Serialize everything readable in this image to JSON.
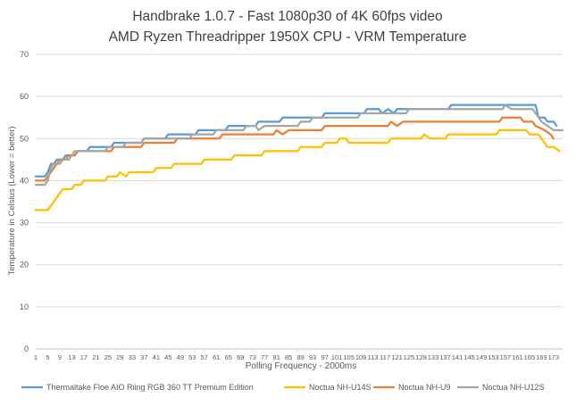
{
  "chart_data": {
    "type": "line",
    "title": "Handbrake 1.0.7 - Fast 1080p30 of 4K 60fps video",
    "subtitle": "AMD Ryzen Threadripper 1950X CPU - VRM Temperature",
    "xlabel": "Polling Frequency - 2000ms",
    "ylabel": "Temperature in Celsius (Lower = better)",
    "ylim": [
      0,
      70
    ],
    "yticks": [
      0,
      10,
      20,
      30,
      40,
      50,
      60,
      70
    ],
    "xlim": [
      1,
      176
    ],
    "xticks": [
      "1",
      "5",
      "9",
      "13",
      "17",
      "21",
      "25",
      "29",
      "33",
      "37",
      "41",
      "45",
      "49",
      "53",
      "57",
      "61",
      "65",
      "69",
      "73",
      "77",
      "81",
      "85",
      "89",
      "93",
      "97",
      "101",
      "105",
      "109",
      "113",
      "117",
      "121",
      "125",
      "129",
      "133",
      "137",
      "141",
      "145",
      "149",
      "153",
      "157",
      "161",
      "165",
      "169",
      "173"
    ],
    "grid": "horizontal",
    "legend_position": "bottom",
    "series": [
      {
        "name": "Thermaltake Floe AIO Riing RGB 360 TT Premium Edition",
        "color": "#5b9bd5",
        "points": [
          [
            1,
            41
          ],
          [
            4,
            41
          ],
          [
            5,
            42
          ],
          [
            6,
            44
          ],
          [
            7,
            44
          ],
          [
            8,
            45
          ],
          [
            10,
            45
          ],
          [
            11,
            46
          ],
          [
            14,
            46
          ],
          [
            15,
            47
          ],
          [
            18,
            47
          ],
          [
            19,
            48
          ],
          [
            26,
            48
          ],
          [
            27,
            49
          ],
          [
            36,
            49
          ],
          [
            37,
            50
          ],
          [
            44,
            50
          ],
          [
            45,
            51
          ],
          [
            54,
            51
          ],
          [
            55,
            52
          ],
          [
            64,
            52
          ],
          [
            65,
            53
          ],
          [
            74,
            53
          ],
          [
            75,
            54
          ],
          [
            82,
            54
          ],
          [
            83,
            55
          ],
          [
            96,
            55
          ],
          [
            97,
            56
          ],
          [
            110,
            56
          ],
          [
            111,
            57
          ],
          [
            115,
            57
          ],
          [
            116,
            56
          ],
          [
            118,
            57
          ],
          [
            120,
            56
          ],
          [
            121,
            57
          ],
          [
            138,
            57
          ],
          [
            139,
            58
          ],
          [
            167,
            58
          ],
          [
            168,
            55
          ],
          [
            170,
            55
          ],
          [
            171,
            54
          ],
          [
            173,
            54
          ],
          [
            174,
            53
          ]
        ]
      },
      {
        "name": "Noctua NH-U14S",
        "color": "#ffc000",
        "points": [
          [
            1,
            33
          ],
          [
            5,
            33
          ],
          [
            6,
            34
          ],
          [
            8,
            36
          ],
          [
            9,
            37
          ],
          [
            10,
            38
          ],
          [
            13,
            38
          ],
          [
            14,
            39
          ],
          [
            16,
            39
          ],
          [
            17,
            40
          ],
          [
            24,
            40
          ],
          [
            25,
            41
          ],
          [
            28,
            41
          ],
          [
            29,
            42
          ],
          [
            31,
            41
          ],
          [
            32,
            42
          ],
          [
            40,
            42
          ],
          [
            41,
            43
          ],
          [
            46,
            43
          ],
          [
            47,
            44
          ],
          [
            56,
            44
          ],
          [
            57,
            45
          ],
          [
            66,
            45
          ],
          [
            67,
            46
          ],
          [
            76,
            46
          ],
          [
            77,
            47
          ],
          [
            88,
            47
          ],
          [
            89,
            48
          ],
          [
            96,
            48
          ],
          [
            97,
            49
          ],
          [
            101,
            49
          ],
          [
            102,
            50
          ],
          [
            104,
            50
          ],
          [
            105,
            49
          ],
          [
            118,
            49
          ],
          [
            119,
            50
          ],
          [
            129,
            50
          ],
          [
            130,
            51
          ],
          [
            132,
            50
          ],
          [
            137,
            50
          ],
          [
            138,
            51
          ],
          [
            154,
            51
          ],
          [
            155,
            52
          ],
          [
            164,
            52
          ],
          [
            165,
            51
          ],
          [
            168,
            51
          ],
          [
            169,
            50
          ],
          [
            171,
            48
          ],
          [
            173,
            48
          ],
          [
            175,
            47
          ]
        ]
      },
      {
        "name": "Noctua NH-U9",
        "color": "#ed7d31",
        "points": [
          [
            1,
            40
          ],
          [
            4,
            40
          ],
          [
            5,
            41
          ],
          [
            7,
            43
          ],
          [
            8,
            44
          ],
          [
            9,
            45
          ],
          [
            11,
            45
          ],
          [
            12,
            46
          ],
          [
            14,
            46
          ],
          [
            15,
            47
          ],
          [
            26,
            47
          ],
          [
            27,
            48
          ],
          [
            36,
            48
          ],
          [
            37,
            49
          ],
          [
            47,
            49
          ],
          [
            48,
            50
          ],
          [
            62,
            50
          ],
          [
            63,
            51
          ],
          [
            80,
            51
          ],
          [
            81,
            52
          ],
          [
            83,
            51
          ],
          [
            85,
            52
          ],
          [
            96,
            52
          ],
          [
            97,
            53
          ],
          [
            118,
            53
          ],
          [
            119,
            54
          ],
          [
            121,
            53
          ],
          [
            123,
            54
          ],
          [
            155,
            54
          ],
          [
            156,
            55
          ],
          [
            162,
            55
          ],
          [
            163,
            54
          ],
          [
            166,
            54
          ],
          [
            167,
            53
          ],
          [
            170,
            52
          ],
          [
            172,
            51
          ],
          [
            173,
            50
          ]
        ]
      },
      {
        "name": "Noctua NH-U12S",
        "color": "#a5a5a5",
        "points": [
          [
            1,
            39
          ],
          [
            4,
            39
          ],
          [
            5,
            40
          ],
          [
            6,
            43
          ],
          [
            7,
            44
          ],
          [
            9,
            44
          ],
          [
            10,
            45
          ],
          [
            12,
            45
          ],
          [
            13,
            46
          ],
          [
            14,
            47
          ],
          [
            24,
            47
          ],
          [
            25,
            48
          ],
          [
            30,
            48
          ],
          [
            31,
            49
          ],
          [
            36,
            49
          ],
          [
            37,
            50
          ],
          [
            52,
            50
          ],
          [
            53,
            51
          ],
          [
            60,
            51
          ],
          [
            61,
            52
          ],
          [
            70,
            52
          ],
          [
            71,
            53
          ],
          [
            74,
            53
          ],
          [
            75,
            52
          ],
          [
            77,
            53
          ],
          [
            88,
            53
          ],
          [
            89,
            54
          ],
          [
            92,
            54
          ],
          [
            93,
            55
          ],
          [
            108,
            55
          ],
          [
            109,
            56
          ],
          [
            124,
            56
          ],
          [
            125,
            57
          ],
          [
            156,
            57
          ],
          [
            157,
            58
          ],
          [
            159,
            57
          ],
          [
            166,
            57
          ],
          [
            167,
            56
          ],
          [
            169,
            54
          ],
          [
            171,
            53
          ],
          [
            173,
            52
          ],
          [
            176,
            52
          ]
        ]
      }
    ]
  }
}
